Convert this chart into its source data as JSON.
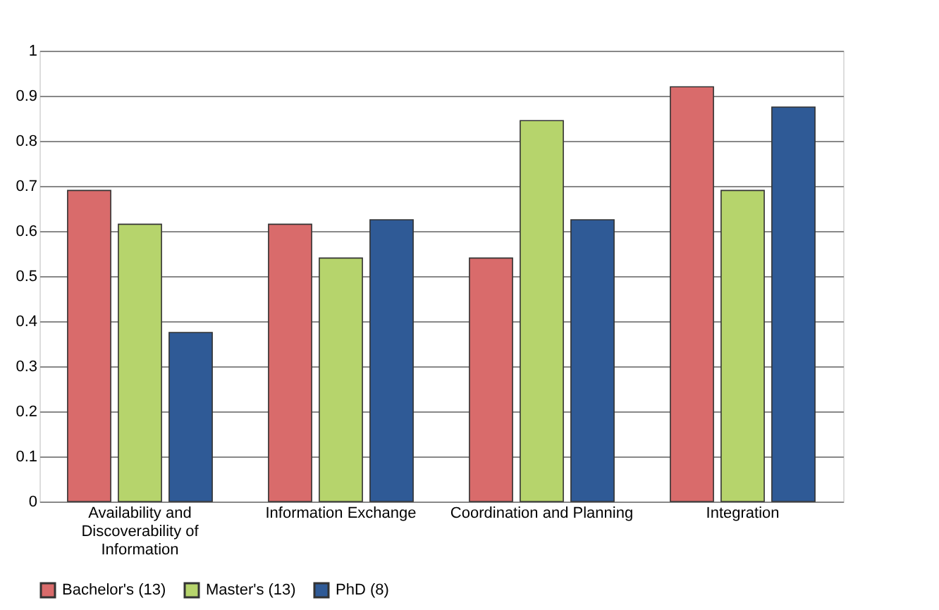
{
  "chart_data": {
    "type": "bar",
    "categories": [
      "Availability and Discoverability of Information",
      "Information Exchange",
      "Coordination and Planning",
      "Integration"
    ],
    "series": [
      {
        "name": "Bachelor's (13)",
        "color": "#d96b6b",
        "values": [
          0.69,
          0.615,
          0.54,
          0.92
        ]
      },
      {
        "name": "Master's (13)",
        "color": "#b6d46c",
        "values": [
          0.615,
          0.54,
          0.845,
          0.69
        ]
      },
      {
        "name": "PhD (8)",
        "color": "#2f5a96",
        "values": [
          0.375,
          0.625,
          0.625,
          0.875
        ]
      }
    ],
    "ylim": [
      0,
      1
    ],
    "yticks": [
      0,
      0.1,
      0.2,
      0.3,
      0.4,
      0.5,
      0.6,
      0.7,
      0.8,
      0.9,
      1
    ],
    "grid": "y",
    "legend": "bottom"
  }
}
